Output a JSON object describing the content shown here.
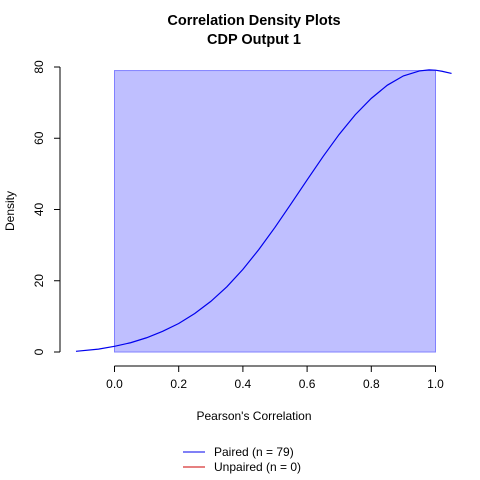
{
  "chart_data": {
    "type": "area",
    "title": "Correlation Density Plots",
    "subtitle": "CDP Output 1",
    "xlabel": "Pearson's Correlation",
    "ylabel": "Density",
    "xlim": [
      -0.12,
      1.05
    ],
    "ylim": [
      0,
      80
    ],
    "x_ticks": [
      0.0,
      0.2,
      0.4,
      0.6,
      0.8,
      1.0
    ],
    "x_tick_labels": [
      "0.0",
      "0.2",
      "0.4",
      "0.6",
      "0.8",
      "1.0"
    ],
    "y_ticks": [
      0,
      20,
      40,
      60,
      80
    ],
    "y_tick_labels": [
      "0",
      "20",
      "40",
      "60",
      "80"
    ],
    "grid": false,
    "shaded_region": {
      "x": [
        0.0,
        1.0
      ],
      "y": [
        0,
        79
      ],
      "color": "#bfbfff",
      "border": "#8080ff"
    },
    "series": [
      {
        "name": "Paired (n = 79)",
        "color": "#0000ee",
        "x": [
          -0.12,
          -0.05,
          0.0,
          0.05,
          0.1,
          0.15,
          0.2,
          0.25,
          0.3,
          0.35,
          0.4,
          0.45,
          0.5,
          0.55,
          0.6,
          0.65,
          0.7,
          0.75,
          0.8,
          0.85,
          0.9,
          0.95,
          0.98,
          1.0,
          1.02,
          1.05
        ],
        "y": [
          0.2,
          0.8,
          1.6,
          2.6,
          4.0,
          5.8,
          8.0,
          10.8,
          14.2,
          18.3,
          23.2,
          28.8,
          35.0,
          41.6,
          48.3,
          54.9,
          61.1,
          66.6,
          71.2,
          74.9,
          77.5,
          78.9,
          79.2,
          79.1,
          78.8,
          78.2
        ]
      },
      {
        "name": "Unpaired (n = 0)",
        "color": "#cc0000",
        "x": [],
        "y": []
      }
    ],
    "legend": {
      "position": "bottom-center",
      "items": [
        {
          "label": "Paired (n = 79)",
          "color": "#0000ee"
        },
        {
          "label": "Unpaired (n = 0)",
          "color": "#cc0000"
        }
      ]
    }
  }
}
